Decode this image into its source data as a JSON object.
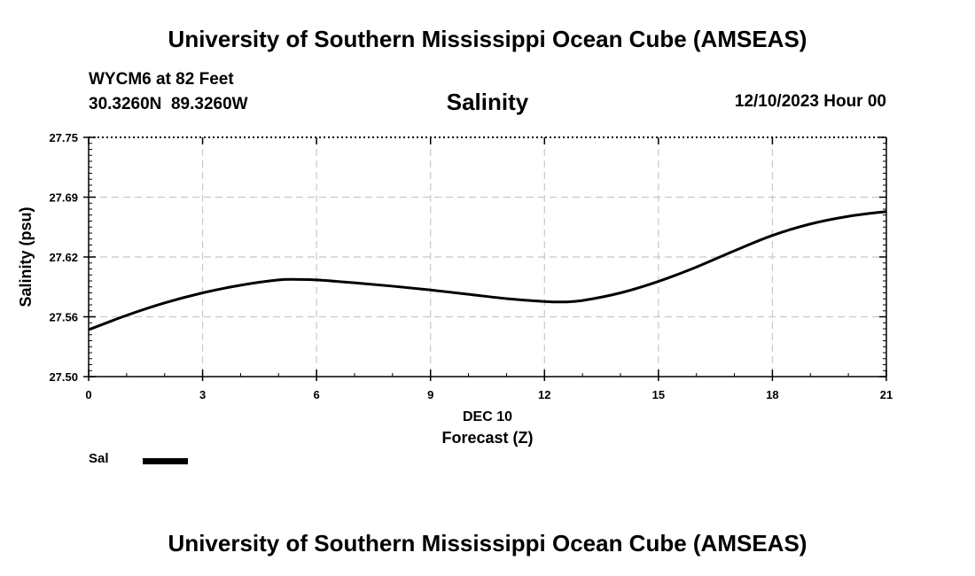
{
  "header": {
    "title": "University of Southern Mississippi Ocean Cube (AMSEAS)",
    "station": "WYCM6 at 82 Feet",
    "coordinates": "30.3260N  89.3260W",
    "variable": "Salinity",
    "datetime": "12/10/2023 Hour 00"
  },
  "footer": {
    "title": "University of Southern Mississippi Ocean Cube (AMSEAS)"
  },
  "legend": {
    "label": "Sal",
    "color": "#000000"
  },
  "chart_data": {
    "type": "line",
    "title": "Salinity",
    "xlabel": "Forecast (Z)",
    "xsublabel": "DEC 10",
    "ylabel": "Salinity (psu)",
    "xlim": [
      0,
      21
    ],
    "ylim": [
      27.5,
      27.75
    ],
    "x_ticks": [
      0,
      3,
      6,
      9,
      12,
      15,
      18,
      21
    ],
    "x_tick_labels": [
      "0",
      "3",
      "6",
      "9",
      "12",
      "15",
      "18",
      "21"
    ],
    "y_ticks": [
      27.5,
      27.5625,
      27.625,
      27.6875,
      27.75
    ],
    "y_tick_labels": [
      "27.50",
      "27.56",
      "27.62",
      "27.69",
      "27.75"
    ],
    "grid": true,
    "grid_color": "#c8c8c8",
    "line_color": "#000000",
    "series": [
      {
        "name": "Sal",
        "x": [
          0,
          1,
          2,
          3,
          4,
          5,
          5.5,
          6,
          7,
          8,
          9,
          10,
          11,
          12,
          12.5,
          13,
          14,
          15,
          16,
          17,
          18,
          19,
          20,
          21
        ],
        "values": [
          27.549,
          27.564,
          27.577,
          27.5875,
          27.5955,
          27.601,
          27.6015,
          27.601,
          27.598,
          27.5945,
          27.5905,
          27.586,
          27.5815,
          27.5785,
          27.578,
          27.5795,
          27.5875,
          27.5995,
          27.6145,
          27.6315,
          27.6475,
          27.6595,
          27.6675,
          27.6725
        ]
      }
    ]
  }
}
